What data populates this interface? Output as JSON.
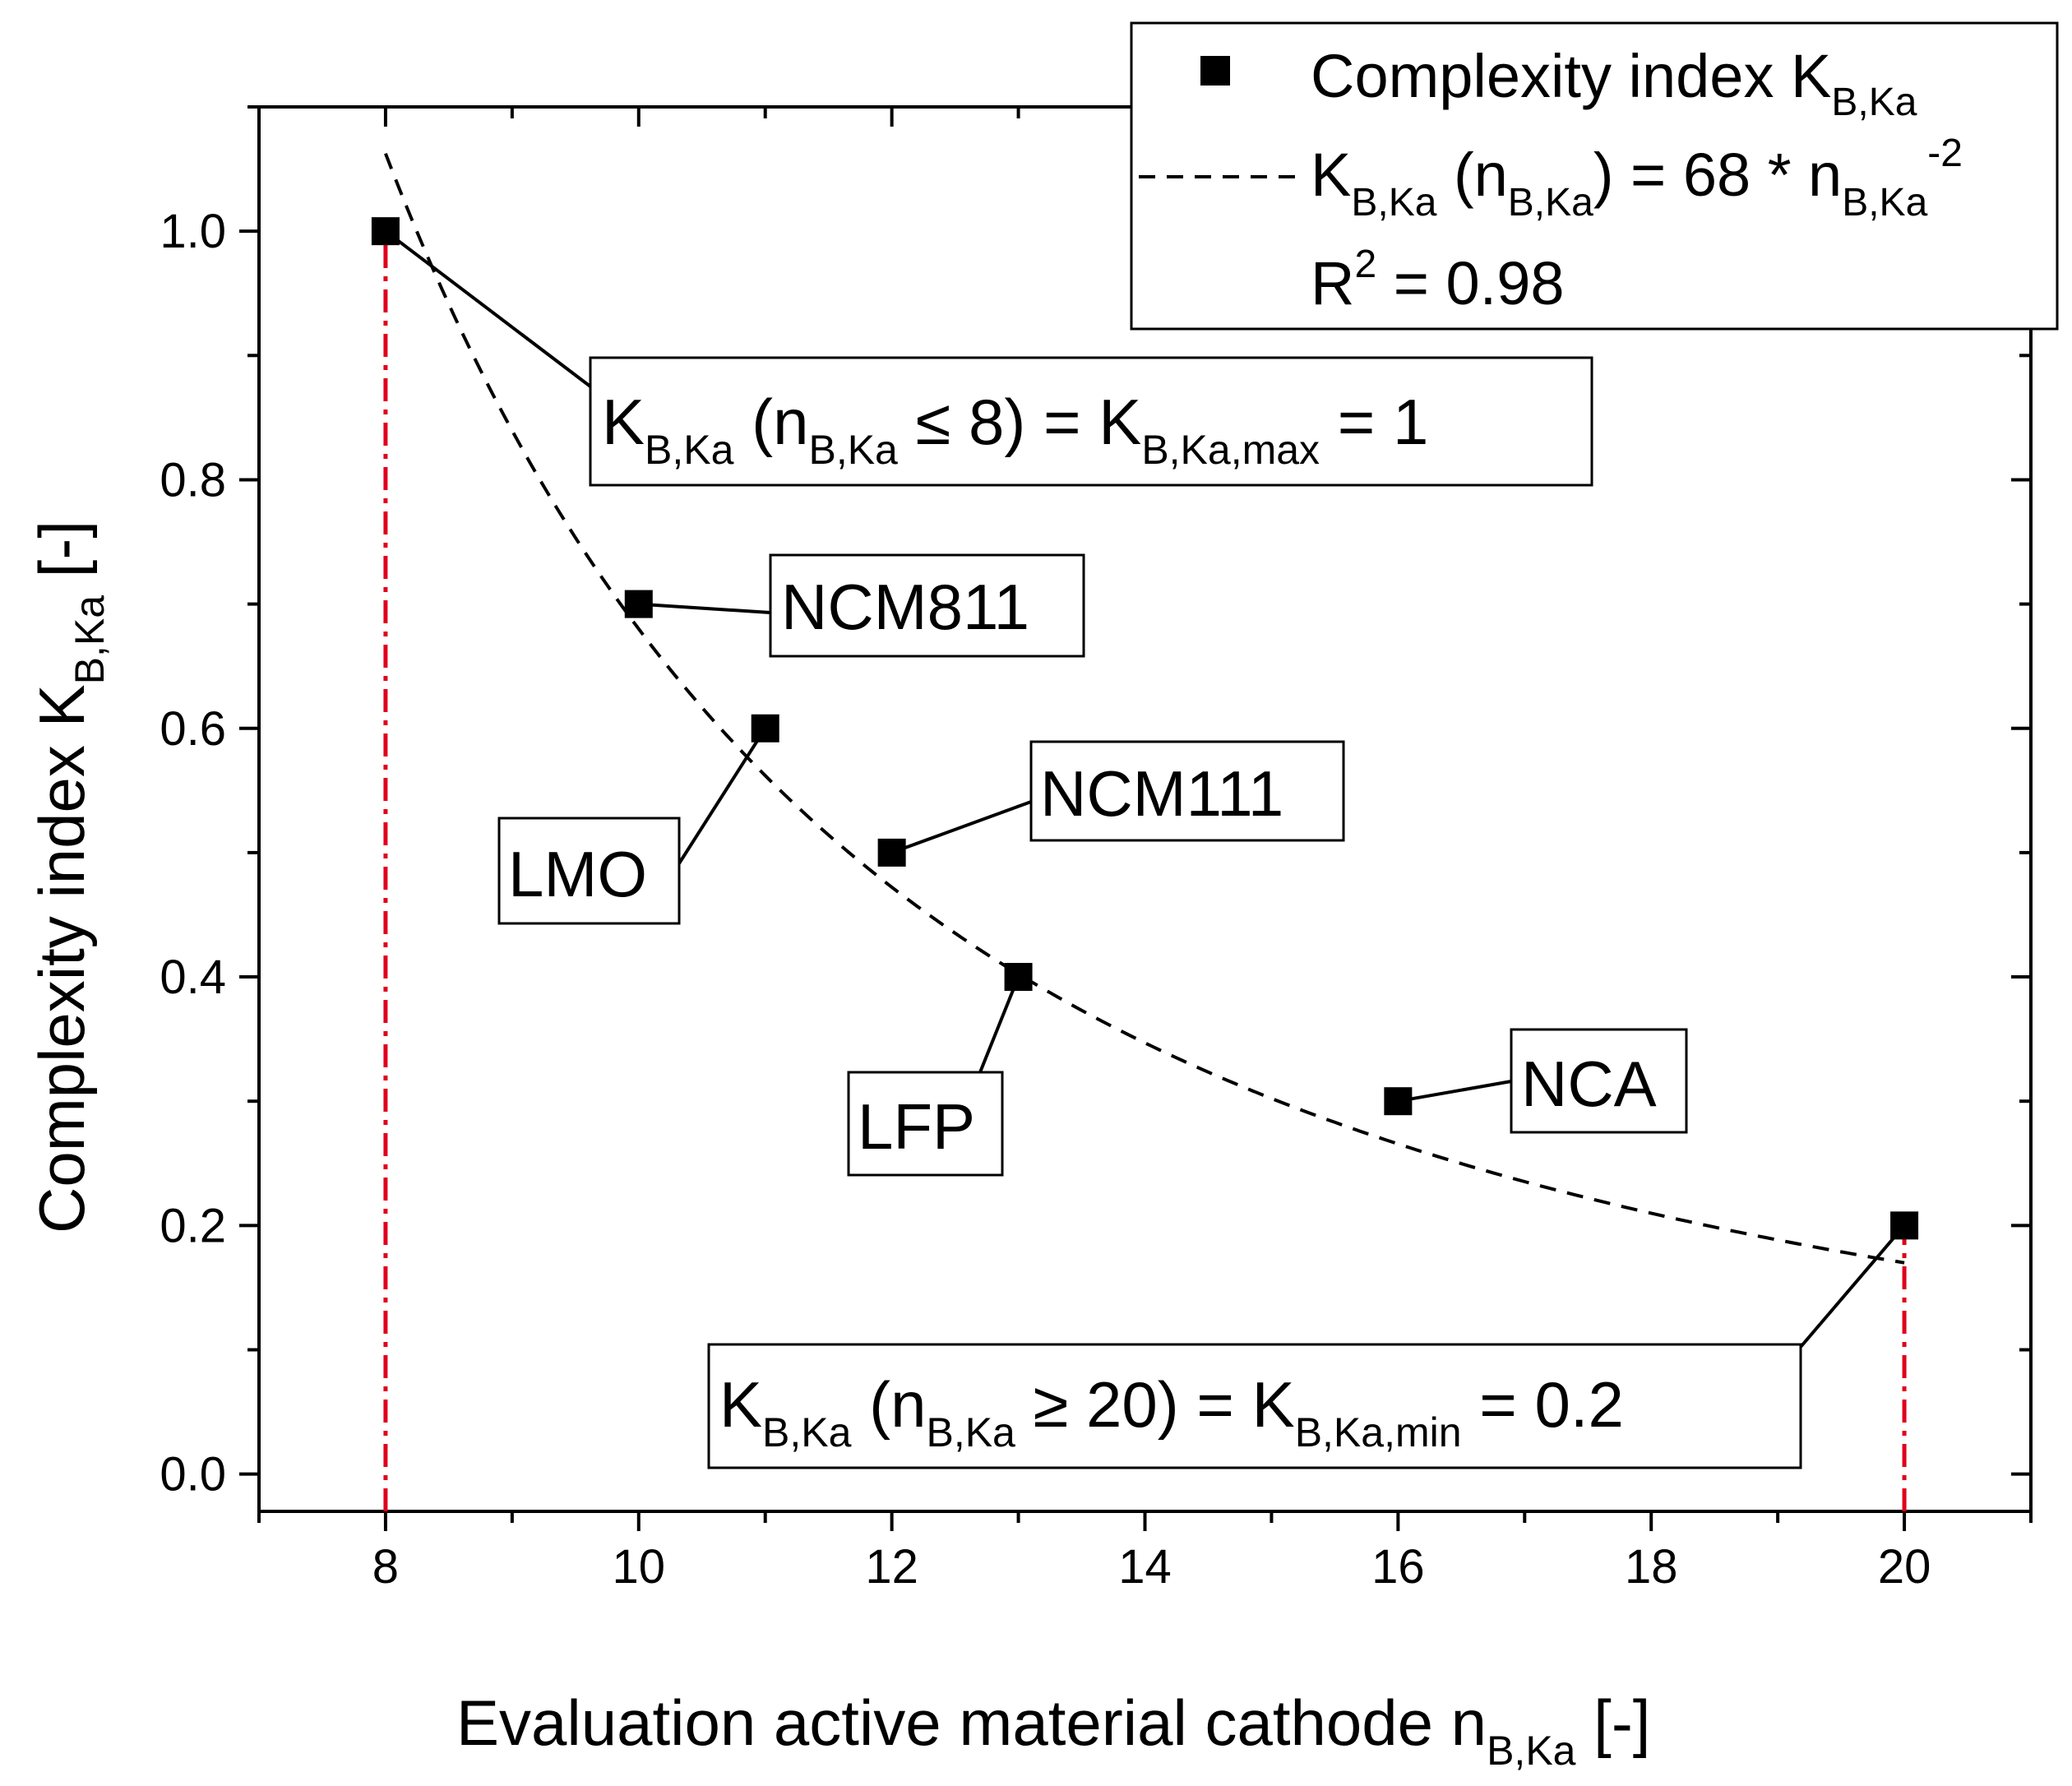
{
  "chart_data": {
    "type": "scatter",
    "title": "",
    "xlabel": "Evaluation active material cathode n",
    "xlabel_sub": "B,Ka",
    "xlabel_suffix": " [-]",
    "ylabel": "Complexity index K",
    "ylabel_sub": "B,Ka",
    "ylabel_suffix": " [-]",
    "xlim": [
      7,
      21
    ],
    "ylim": [
      -0.03,
      1.1
    ],
    "xticks": [
      8,
      10,
      12,
      14,
      16,
      18,
      20
    ],
    "xtick_labels": [
      "8",
      "10",
      "12",
      "14",
      "16",
      "18",
      "20"
    ],
    "yticks": [
      0.0,
      0.2,
      0.4,
      0.6,
      0.8,
      1.0
    ],
    "ytick_labels": [
      "0.0",
      "0.2",
      "0.4",
      "0.6",
      "0.8",
      "1.0"
    ],
    "grid": false,
    "series": [
      {
        "name": "Complexity index K",
        "name_sub": "B,Ka",
        "marker": "square",
        "color": "#000000",
        "x": [
          8,
          10,
          11,
          12,
          13,
          16,
          20
        ],
        "y": [
          1.0,
          0.7,
          0.6,
          0.5,
          0.4,
          0.3,
          0.2
        ]
      }
    ],
    "fit": {
      "style": "dashed",
      "color": "#000000",
      "coefficient": 68,
      "exponent": -2,
      "x_range": [
        8,
        20
      ]
    },
    "reference_lines": [
      {
        "x": 8,
        "y_to": 1.0,
        "color": "#e0001b",
        "style": "dash-dot"
      },
      {
        "x": 20,
        "y_to": 0.2,
        "color": "#e0001b",
        "style": "dash-dot"
      }
    ],
    "legend": {
      "position": "top-right",
      "entries": [
        {
          "main": "Complexity index K",
          "sub": "B,Ka"
        },
        {
          "parts": [
            "K",
            "B,Ka",
            " (n",
            "B,Ka",
            ") = 68 * n",
            "B,Ka",
            "-2"
          ]
        },
        {
          "parts": [
            "R",
            "2",
            " = 0.98"
          ]
        }
      ]
    },
    "annotations": [
      {
        "id": "kmax",
        "point_x": 8,
        "point_y": 1.0,
        "parts": [
          "K",
          "B,Ka",
          " (n",
          "B,Ka",
          " ≤ 8) = K",
          "B,Ka,max",
          " = 1"
        ]
      },
      {
        "id": "ncm811",
        "point_x": 10,
        "point_y": 0.7,
        "label": "NCM811"
      },
      {
        "id": "lmo",
        "point_x": 11,
        "point_y": 0.6,
        "label": "LMO"
      },
      {
        "id": "ncm111",
        "point_x": 12,
        "point_y": 0.5,
        "label": "NCM111"
      },
      {
        "id": "lfp",
        "point_x": 13,
        "point_y": 0.4,
        "label": "LFP"
      },
      {
        "id": "nca",
        "point_x": 16,
        "point_y": 0.3,
        "label": "NCA"
      },
      {
        "id": "kmin",
        "point_x": 20,
        "point_y": 0.2,
        "parts": [
          "K",
          "B,Ka",
          " (n",
          "B,Ka",
          " ≥ 20) = K",
          "B,Ka,min",
          " = 0.2"
        ]
      }
    ]
  }
}
